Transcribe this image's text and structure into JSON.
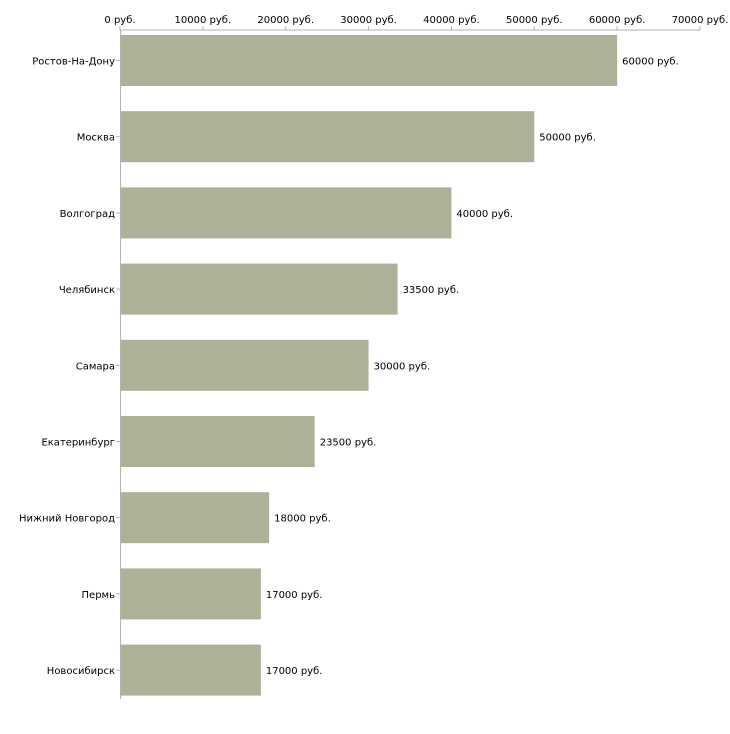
{
  "chart_data": {
    "type": "bar",
    "orientation": "horizontal",
    "title": "",
    "xlabel": "",
    "ylabel": "",
    "xlim": [
      0,
      70000
    ],
    "axis_position": "top",
    "grid": false,
    "legend": "none",
    "unit_suffix": " руб.",
    "ticks": [
      0,
      10000,
      20000,
      30000,
      40000,
      50000,
      60000,
      70000
    ],
    "tick_labels": [
      "0 руб.",
      "10000 руб.",
      "20000 руб.",
      "30000 руб.",
      "40000 руб.",
      "50000 руб.",
      "60000 руб.",
      "70000 руб."
    ],
    "categories": [
      "Ростов-На-Дону",
      "Москва",
      "Волгоград",
      "Челябинск",
      "Самара",
      "Екатеринбург",
      "Нижний Новгород",
      "Пермь",
      "Новосибирск"
    ],
    "values": [
      60000,
      50000,
      40000,
      33500,
      30000,
      23500,
      18000,
      17000,
      17000
    ],
    "value_labels": [
      "60000 руб.",
      "50000 руб.",
      "40000 руб.",
      "33500 руб.",
      "30000 руб.",
      "23500 руб.",
      "18000 руб.",
      "17000 руб.",
      "17000 руб."
    ],
    "colors": {
      "bar": "#acb298",
      "axis": "#b3b3b3",
      "text": "#000000",
      "background": "#ffffff"
    }
  }
}
